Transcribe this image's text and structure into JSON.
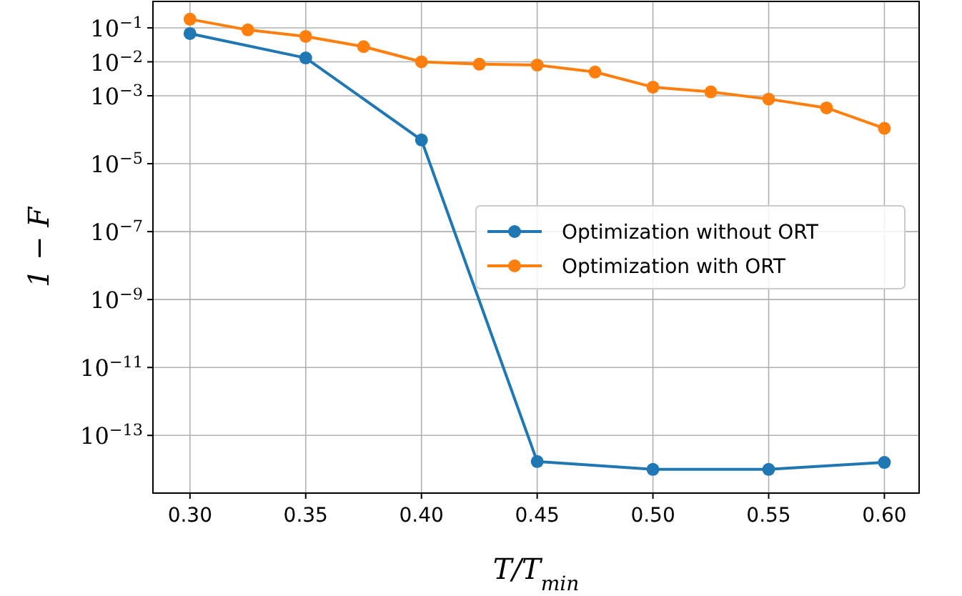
{
  "chart_data": {
    "type": "line",
    "xlabel": "T/T$_{min}$",
    "ylabel": "1 − F",
    "log": "y",
    "grid": true,
    "legend": "right",
    "marker": "circle",
    "line_style": "solid",
    "xlim": [
      0.284,
      0.615
    ],
    "xticks": [
      {
        "value": 0.3,
        "label": "0.30"
      },
      {
        "value": 0.35,
        "label": "0.35"
      },
      {
        "value": 0.4,
        "label": "0.40"
      },
      {
        "value": 0.45,
        "label": "0.45"
      },
      {
        "value": 0.5,
        "label": "0.50"
      },
      {
        "value": 0.55,
        "label": "0.55"
      },
      {
        "value": 0.6,
        "label": "0.60"
      }
    ],
    "ylim": [
      2e-15,
      0.6
    ],
    "yticks": [
      {
        "value": 0.1,
        "label": "10$^{−1}$"
      },
      {
        "value": 0.01,
        "label": "10$^{−2}$"
      },
      {
        "value": 0.001,
        "label": "10$^{−3}$"
      },
      {
        "value": 1e-05,
        "label": "10$^{−5}$"
      },
      {
        "value": 1e-07,
        "label": "10$^{−7}$"
      },
      {
        "value": 1e-09,
        "label": "10$^{−9}$"
      },
      {
        "value": 1e-11,
        "label": "10$^{−11}$"
      },
      {
        "value": 1e-13,
        "label": "10$^{−13}$"
      }
    ],
    "series": [
      {
        "name": "Optimization without ORT",
        "color": "#1f77b4",
        "x": [
          0.3,
          0.35,
          0.4,
          0.45,
          0.5,
          0.55,
          0.6
        ],
        "values": [
          0.068,
          0.013,
          5e-05,
          1.7e-14,
          1e-14,
          1e-14,
          1.6e-14
        ]
      },
      {
        "name": "Optimization with ORT",
        "color": "#ff7f0e",
        "x": [
          0.3,
          0.325,
          0.35,
          0.375,
          0.4,
          0.425,
          0.45,
          0.475,
          0.5,
          0.525,
          0.55,
          0.575,
          0.6
        ],
        "values": [
          0.18,
          0.087,
          0.056,
          0.028,
          0.01,
          0.0085,
          0.008,
          0.005,
          0.0018,
          0.0013,
          0.0008,
          0.00044,
          0.00011
        ]
      }
    ]
  }
}
